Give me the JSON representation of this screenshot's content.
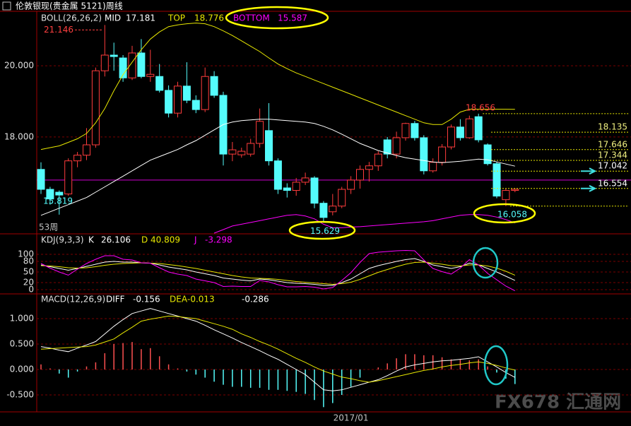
{
  "header": {
    "title": "伦敦银现(贵金属 5121)周线",
    "watermark": "FX678 汇通网"
  },
  "chart_data": [
    {
      "type": "candlestick",
      "title": "BOLL(26,26,2)",
      "categories": [
        null,
        null,
        null,
        null,
        null,
        null,
        null,
        null,
        null,
        null,
        null,
        null,
        null,
        null,
        null,
        null,
        null,
        null,
        null,
        null,
        null,
        null,
        null,
        null,
        null,
        null,
        null,
        null,
        null,
        null,
        null,
        null,
        null,
        null,
        "2017/01",
        null,
        null,
        null,
        null,
        null,
        null,
        null,
        null,
        null,
        null,
        null,
        null,
        null,
        null,
        null,
        null,
        null,
        null
      ],
      "open": [
        17.09,
        16.53,
        16.45,
        16.4,
        17.33,
        17.49,
        17.78,
        19.86,
        20.3,
        20.22,
        19.66,
        20.36,
        19.7,
        19.7,
        19.31,
        18.67,
        19.43,
        19.03,
        18.77,
        19.7,
        19.17,
        17.52,
        17.5,
        17.52,
        17.82,
        18.18,
        17.33,
        16.57,
        16.5,
        16.73,
        16.85,
        16.14,
        15.9,
        16.06,
        16.53,
        16.79,
        17.09,
        17.19,
        17.92,
        17.52,
        17.98,
        18.38,
        17.98,
        17.05,
        17.29,
        17.72,
        18.28,
        17.98,
        18.57,
        17.78,
        17.25,
        16.24,
        16.5
      ],
      "high": [
        17.29,
        16.6,
        16.5,
        17.4,
        17.58,
        18.25,
        19.95,
        21.146,
        20.65,
        20.3,
        20.56,
        20.75,
        20.45,
        20.05,
        19.45,
        19.55,
        20.1,
        19.17,
        19.95,
        19.85,
        19.27,
        17.86,
        17.7,
        17.95,
        18.8,
        18.95,
        17.4,
        16.7,
        16.85,
        17.0,
        16.9,
        16.2,
        16.4,
        16.6,
        16.9,
        17.2,
        17.3,
        17.6,
        18.0,
        18.15,
        18.4,
        18.45,
        18.05,
        17.4,
        17.8,
        18.35,
        18.5,
        18.6,
        18.656,
        17.82,
        17.3,
        16.55,
        16.56
      ],
      "low": [
        16.4,
        16.1,
        15.819,
        16.35,
        17.15,
        17.35,
        17.7,
        19.7,
        19.86,
        19.55,
        19.6,
        19.65,
        19.55,
        19.25,
        18.55,
        18.55,
        18.95,
        18.67,
        18.7,
        19.1,
        17.2,
        17.32,
        17.42,
        17.45,
        17.7,
        17.2,
        16.4,
        16.3,
        16.35,
        16.65,
        16.0,
        15.629,
        15.8,
        16.0,
        16.4,
        16.55,
        16.75,
        17.05,
        17.4,
        17.4,
        17.9,
        17.9,
        16.95,
        17.0,
        17.2,
        17.65,
        17.9,
        17.95,
        17.85,
        17.2,
        16.28,
        16.058,
        16.45
      ],
      "close": [
        16.53,
        16.26,
        16.37,
        17.33,
        17.49,
        17.78,
        19.86,
        20.3,
        20.26,
        19.66,
        20.36,
        19.7,
        19.76,
        19.31,
        18.67,
        19.43,
        19.03,
        18.77,
        19.7,
        19.17,
        17.52,
        17.64,
        17.6,
        17.82,
        18.44,
        17.33,
        16.53,
        16.5,
        16.73,
        16.85,
        16.14,
        15.74,
        16.06,
        16.53,
        16.79,
        17.09,
        17.19,
        17.52,
        17.52,
        17.98,
        18.38,
        17.98,
        17.05,
        17.29,
        17.72,
        18.28,
        17.98,
        18.51,
        17.92,
        17.25,
        16.34,
        16.5,
        16.53
      ],
      "up_color": "#ff3c3c",
      "down_color": "#54fcfc",
      "series": [
        {
          "name": "MID",
          "color": "#ffffff",
          "values": [
            15.8,
            15.9,
            16.0,
            16.1,
            16.2,
            16.3,
            16.45,
            16.6,
            16.75,
            16.9,
            17.05,
            17.2,
            17.35,
            17.45,
            17.55,
            17.65,
            17.78,
            17.9,
            18.05,
            18.2,
            18.35,
            18.42,
            18.46,
            18.48,
            18.5,
            18.5,
            18.48,
            18.46,
            18.44,
            18.42,
            18.38,
            18.3,
            18.2,
            18.08,
            17.95,
            17.82,
            17.72,
            17.62,
            17.55,
            17.48,
            17.42,
            17.38,
            17.34,
            17.3,
            17.28,
            17.3,
            17.32,
            17.35,
            17.38,
            17.36,
            17.3,
            17.24,
            17.181
          ]
        },
        {
          "name": "TOP",
          "color": "#e8e800",
          "values": [
            17.65,
            17.7,
            17.75,
            17.85,
            17.95,
            18.1,
            18.4,
            18.8,
            19.3,
            19.75,
            20.1,
            20.45,
            20.75,
            20.95,
            21.1,
            21.15,
            21.18,
            21.2,
            21.18,
            21.1,
            20.98,
            20.85,
            20.7,
            20.55,
            20.4,
            20.22,
            20.05,
            19.92,
            19.8,
            19.7,
            19.6,
            19.5,
            19.4,
            19.3,
            19.2,
            19.1,
            19.0,
            18.9,
            18.8,
            18.7,
            18.6,
            18.5,
            18.4,
            18.35,
            18.35,
            18.5,
            18.7,
            18.78,
            18.78,
            18.78,
            18.78,
            18.78,
            18.776
          ]
        },
        {
          "name": "BOTTOM",
          "color": "#ff00ff",
          "values": [
            null,
            null,
            null,
            null,
            null,
            null,
            null,
            null,
            null,
            null,
            null,
            null,
            null,
            null,
            null,
            null,
            null,
            null,
            null,
            15.3,
            15.4,
            15.5,
            15.55,
            15.6,
            15.65,
            15.7,
            15.75,
            15.8,
            15.82,
            15.78,
            15.7,
            15.55,
            15.45,
            15.45,
            15.47,
            15.48,
            15.5,
            15.52,
            15.54,
            15.56,
            15.58,
            15.6,
            15.62,
            15.65,
            15.7,
            15.75,
            15.8,
            15.82,
            15.82,
            15.8,
            15.75,
            15.68,
            15.587
          ]
        }
      ],
      "ylim": [
        15.3,
        21.55
      ],
      "yticks": [
        {
          "value": 18,
          "label": "18.000"
        },
        {
          "value": 20,
          "label": "20.000"
        }
      ],
      "levels": [
        18.135,
        17.646,
        17.344,
        17.042,
        16.554
      ],
      "hline": 16.79,
      "annotations": [
        "53周"
      ]
    },
    {
      "type": "line",
      "title": "KDJ(9,3,3)",
      "series": [
        {
          "name": "K",
          "color": "#ffffff",
          "values": [
            70,
            65,
            60,
            55,
            60,
            66,
            72,
            78,
            80,
            78,
            78,
            76,
            75,
            70,
            64,
            60,
            56,
            50,
            45,
            40,
            33,
            30,
            27,
            25,
            30,
            28,
            24,
            20,
            18,
            17,
            15,
            12,
            12,
            20,
            30,
            45,
            60,
            68,
            74,
            80,
            85,
            88,
            80,
            70,
            65,
            60,
            65,
            75,
            70,
            60,
            50,
            38,
            26.106
          ]
        },
        {
          "name": "D",
          "color": "#e8e800",
          "values": [
            68,
            67,
            65,
            62,
            61,
            62,
            65,
            69,
            72,
            74,
            75,
            76,
            75,
            74,
            71,
            68,
            64,
            60,
            55,
            50,
            45,
            40,
            36,
            33,
            32,
            31,
            29,
            26,
            23,
            21,
            19,
            17,
            15,
            17,
            21,
            29,
            39,
            49,
            57,
            65,
            72,
            77,
            78,
            75,
            72,
            68,
            67,
            70,
            70,
            67,
            61,
            52,
            40.809
          ]
        },
        {
          "name": "J",
          "color": "#ff00ff",
          "values": [
            74,
            61,
            50,
            41,
            58,
            74,
            86,
            96,
            96,
            86,
            84,
            76,
            75,
            62,
            50,
            44,
            40,
            30,
            25,
            20,
            9,
            10,
            9,
            9,
            26,
            22,
            14,
            8,
            8,
            9,
            7,
            2,
            6,
            26,
            48,
            77,
            102,
            106,
            108,
            110,
            111,
            110,
            84,
            60,
            51,
            44,
            61,
            85,
            70,
            46,
            28,
            10,
            -3.298
          ]
        }
      ],
      "ylim": [
        -10,
        156
      ],
      "yticks": [
        0,
        20,
        50,
        80,
        100
      ]
    },
    {
      "type": "macd",
      "title": "MACD(12,26,9)",
      "series": [
        {
          "name": "DIFF",
          "color": "#ffffff",
          "values": [
            0.45,
            0.42,
            0.38,
            0.35,
            0.42,
            0.48,
            0.55,
            0.7,
            0.85,
            0.98,
            1.1,
            1.15,
            1.2,
            1.15,
            1.1,
            1.05,
            1.0,
            0.95,
            0.87,
            0.78,
            0.7,
            0.62,
            0.53,
            0.45,
            0.37,
            0.28,
            0.2,
            0.1,
            0.0,
            -0.1,
            -0.25,
            -0.4,
            -0.42,
            -0.4,
            -0.35,
            -0.3,
            -0.25,
            -0.2,
            -0.12,
            -0.03,
            0.05,
            0.09,
            0.12,
            0.15,
            0.17,
            0.18,
            0.2,
            0.22,
            0.25,
            0.15,
            0.05,
            -0.06,
            -0.156
          ]
        },
        {
          "name": "DEA",
          "color": "#e8e800",
          "values": [
            0.4,
            0.41,
            0.42,
            0.43,
            0.44,
            0.45,
            0.48,
            0.54,
            0.6,
            0.72,
            0.83,
            0.95,
            0.99,
            1.02,
            1.05,
            1.04,
            1.02,
            1.0,
            0.95,
            0.9,
            0.85,
            0.79,
            0.7,
            0.63,
            0.55,
            0.48,
            0.4,
            0.31,
            0.22,
            0.14,
            0.05,
            -0.03,
            -0.09,
            -0.15,
            -0.18,
            -0.22,
            -0.25,
            -0.22,
            -0.18,
            -0.14,
            -0.1,
            -0.06,
            -0.02,
            0.01,
            0.05,
            0.08,
            0.1,
            0.13,
            0.15,
            0.12,
            0.08,
            0.03,
            -0.013
          ]
        }
      ],
      "histogram": {
        "up_color": "#ff5050",
        "down_color": "#54fcfc",
        "values": [
          0.1,
          0.02,
          -0.08,
          -0.16,
          -0.04,
          0.06,
          0.14,
          0.32,
          0.5,
          0.52,
          0.54,
          0.4,
          0.42,
          0.26,
          0.1,
          0.02,
          -0.04,
          -0.1,
          -0.16,
          -0.24,
          -0.3,
          -0.34,
          -0.34,
          -0.36,
          -0.36,
          -0.4,
          -0.4,
          -0.42,
          -0.44,
          -0.48,
          -0.6,
          -0.74,
          -0.66,
          -0.5,
          -0.34,
          -0.16,
          0.0,
          0.04,
          0.12,
          0.22,
          0.3,
          0.3,
          0.28,
          0.28,
          0.24,
          0.2,
          0.2,
          0.18,
          0.2,
          0.06,
          -0.06,
          -0.18,
          -0.286
        ]
      },
      "ylim": [
        -0.833,
        1.472
      ],
      "yticks": [
        {
          "value": 1,
          "label": "1.000"
        },
        {
          "value": 0.5,
          "label": "0.500"
        },
        {
          "value": 0,
          "label": "0.000"
        },
        {
          "value": -0.5,
          "label": "-0.500"
        }
      ]
    }
  ]
}
